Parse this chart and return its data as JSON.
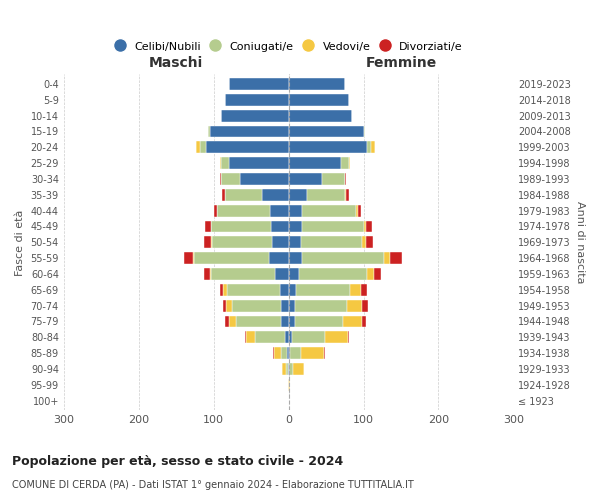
{
  "age_groups": [
    "100+",
    "95-99",
    "90-94",
    "85-89",
    "80-84",
    "75-79",
    "70-74",
    "65-69",
    "60-64",
    "55-59",
    "50-54",
    "45-49",
    "40-44",
    "35-39",
    "30-34",
    "25-29",
    "20-24",
    "15-19",
    "10-14",
    "5-9",
    "0-4"
  ],
  "birth_years": [
    "≤ 1923",
    "1924-1928",
    "1929-1933",
    "1934-1938",
    "1939-1943",
    "1944-1948",
    "1949-1953",
    "1954-1958",
    "1959-1963",
    "1964-1968",
    "1969-1973",
    "1974-1978",
    "1979-1983",
    "1984-1988",
    "1989-1993",
    "1994-1998",
    "1999-2003",
    "2004-2008",
    "2009-2013",
    "2014-2018",
    "2019-2023"
  ],
  "maschi": {
    "celibi": [
      0,
      0,
      1,
      2,
      5,
      10,
      10,
      12,
      18,
      26,
      22,
      23,
      25,
      35,
      65,
      80,
      110,
      105,
      90,
      85,
      80
    ],
    "coniugati": [
      0,
      0,
      3,
      8,
      40,
      60,
      65,
      70,
      85,
      100,
      80,
      80,
      70,
      50,
      25,
      10,
      8,
      2,
      0,
      0,
      0
    ],
    "vedovi": [
      0,
      1,
      5,
      10,
      12,
      10,
      8,
      5,
      2,
      2,
      1,
      1,
      0,
      0,
      0,
      2,
      5,
      0,
      0,
      0,
      0
    ],
    "divorziati": [
      0,
      0,
      0,
      1,
      1,
      5,
      5,
      5,
      8,
      12,
      10,
      8,
      5,
      4,
      2,
      0,
      0,
      0,
      0,
      0,
      0
    ]
  },
  "femmine": {
    "nubili": [
      0,
      0,
      1,
      2,
      4,
      8,
      8,
      10,
      14,
      18,
      16,
      18,
      18,
      25,
      45,
      70,
      105,
      100,
      85,
      80,
      75
    ],
    "coniugate": [
      0,
      0,
      5,
      15,
      45,
      65,
      70,
      72,
      90,
      110,
      82,
      82,
      72,
      50,
      30,
      10,
      5,
      2,
      0,
      0,
      0
    ],
    "vedove": [
      0,
      2,
      15,
      30,
      30,
      25,
      20,
      15,
      10,
      8,
      5,
      3,
      2,
      1,
      0,
      2,
      5,
      0,
      0,
      0,
      0
    ],
    "divorziate": [
      0,
      0,
      0,
      1,
      2,
      5,
      8,
      8,
      10,
      15,
      10,
      8,
      5,
      4,
      2,
      0,
      0,
      0,
      0,
      0,
      0
    ]
  },
  "colors": {
    "celibi": "#3b6fa8",
    "coniugati": "#b5cc8e",
    "vedovi": "#f5c842",
    "divorziati": "#cc2222"
  },
  "xlim": 300,
  "title": "Popolazione per età, sesso e stato civile - 2024",
  "subtitle": "COMUNE DI CERDA (PA) - Dati ISTAT 1° gennaio 2024 - Elaborazione TUTTITALIA.IT",
  "xlabel_left": "Maschi",
  "xlabel_right": "Femmine",
  "ylabel_left": "Fasce di età",
  "ylabel_right": "Anni di nascita",
  "legend_labels": [
    "Celibi/Nubili",
    "Coniugati/e",
    "Vedovi/e",
    "Divorziati/e"
  ],
  "xticks": [
    -300,
    -200,
    -100,
    0,
    100,
    200,
    300
  ],
  "xtick_labels": [
    "300",
    "200",
    "100",
    "0",
    "100",
    "200",
    "300"
  ]
}
